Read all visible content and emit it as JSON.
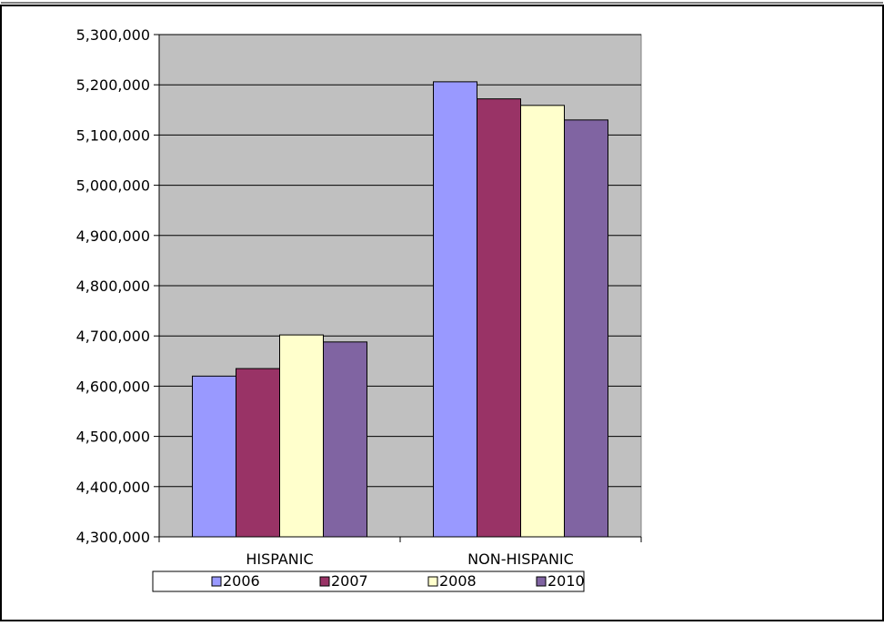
{
  "chart_data": {
    "type": "bar",
    "title": "",
    "xlabel": "",
    "ylabel": "",
    "categories": [
      "HISPANIC",
      "NON-HISPANIC"
    ],
    "ylim": [
      4300000,
      5300000
    ],
    "ytick_step": 100000,
    "grid": true,
    "legend_position": "bottom",
    "series": [
      {
        "name": "2006",
        "color": "#9999FF",
        "values": [
          4620000,
          5206000
        ]
      },
      {
        "name": "2007",
        "color": "#993366",
        "values": [
          4635000,
          5172000
        ]
      },
      {
        "name": "2008",
        "color": "#FFFFCC",
        "values": [
          4702000,
          5159000
        ]
      },
      {
        "name": "2010",
        "color": "#8064A2",
        "values": [
          4688000,
          5130000
        ]
      }
    ],
    "plot_background": "#C0C0C0"
  }
}
